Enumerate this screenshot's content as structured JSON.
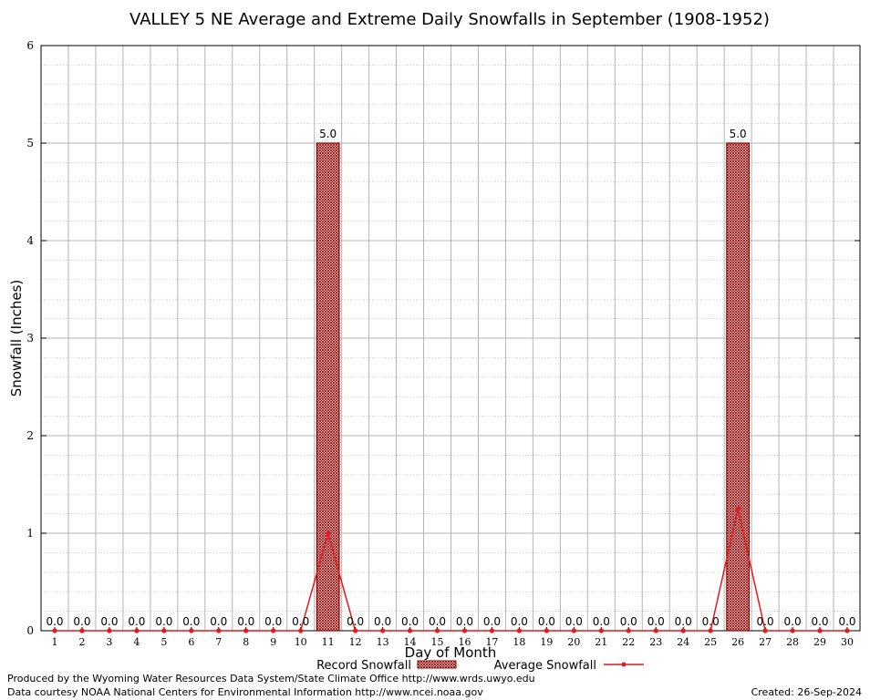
{
  "chart_data": {
    "type": "bar",
    "title": "VALLEY 5 NE Average and Extreme Daily Snowfalls in September (1908-1952)",
    "xlabel": "Day of Month",
    "ylabel": "Snowfall (Inches)",
    "ylim": [
      0,
      6
    ],
    "yticks": [
      "0",
      "1",
      "2",
      "3",
      "4",
      "5",
      "6"
    ],
    "categories": [
      "1",
      "2",
      "3",
      "4",
      "5",
      "6",
      "7",
      "8",
      "9",
      "10",
      "11",
      "12",
      "13",
      "14",
      "15",
      "16",
      "17",
      "18",
      "19",
      "20",
      "21",
      "22",
      "23",
      "24",
      "25",
      "26",
      "27",
      "28",
      "29",
      "30"
    ],
    "series": [
      {
        "name": "Record Snowfall",
        "kind": "bar",
        "color": "#8b0000",
        "values": [
          0,
          0,
          0,
          0,
          0,
          0,
          0,
          0,
          0,
          0,
          5.0,
          0,
          0,
          0,
          0,
          0,
          0,
          0,
          0,
          0,
          0,
          0,
          0,
          0,
          0,
          5.0,
          0,
          0,
          0,
          0
        ],
        "labels": [
          "0.0",
          "0.0",
          "0.0",
          "0.0",
          "0.0",
          "0.0",
          "0.0",
          "0.0",
          "0.0",
          "0.0",
          "5.0",
          "0.0",
          "0.0",
          "0.0",
          "0.0",
          "0.0",
          "0.0",
          "0.0",
          "0.0",
          "0.0",
          "0.0",
          "0.0",
          "0.0",
          "0.0",
          "0.0",
          "5.0",
          "0.0",
          "0.0",
          "0.0",
          "0.0"
        ]
      },
      {
        "name": "Average Snowfall",
        "kind": "line",
        "color": "#e41a1c",
        "values": [
          0,
          0,
          0,
          0,
          0,
          0,
          0,
          0,
          0,
          0,
          1.0,
          0,
          0,
          0,
          0,
          0,
          0,
          0,
          0,
          0,
          0,
          0,
          0,
          0,
          0,
          1.25,
          0,
          0,
          0,
          0
        ]
      }
    ],
    "grid": true,
    "legend_position": "bottom"
  },
  "footer": {
    "left_line1": "Produced by the Wyoming Water Resources Data System/State Climate Office http://www.wrds.uwyo.edu",
    "left_line2": "Data courtesy NOAA National Centers for Environmental Information http://www.ncei.noaa.gov",
    "created": "Created:  26-Sep-2024"
  }
}
